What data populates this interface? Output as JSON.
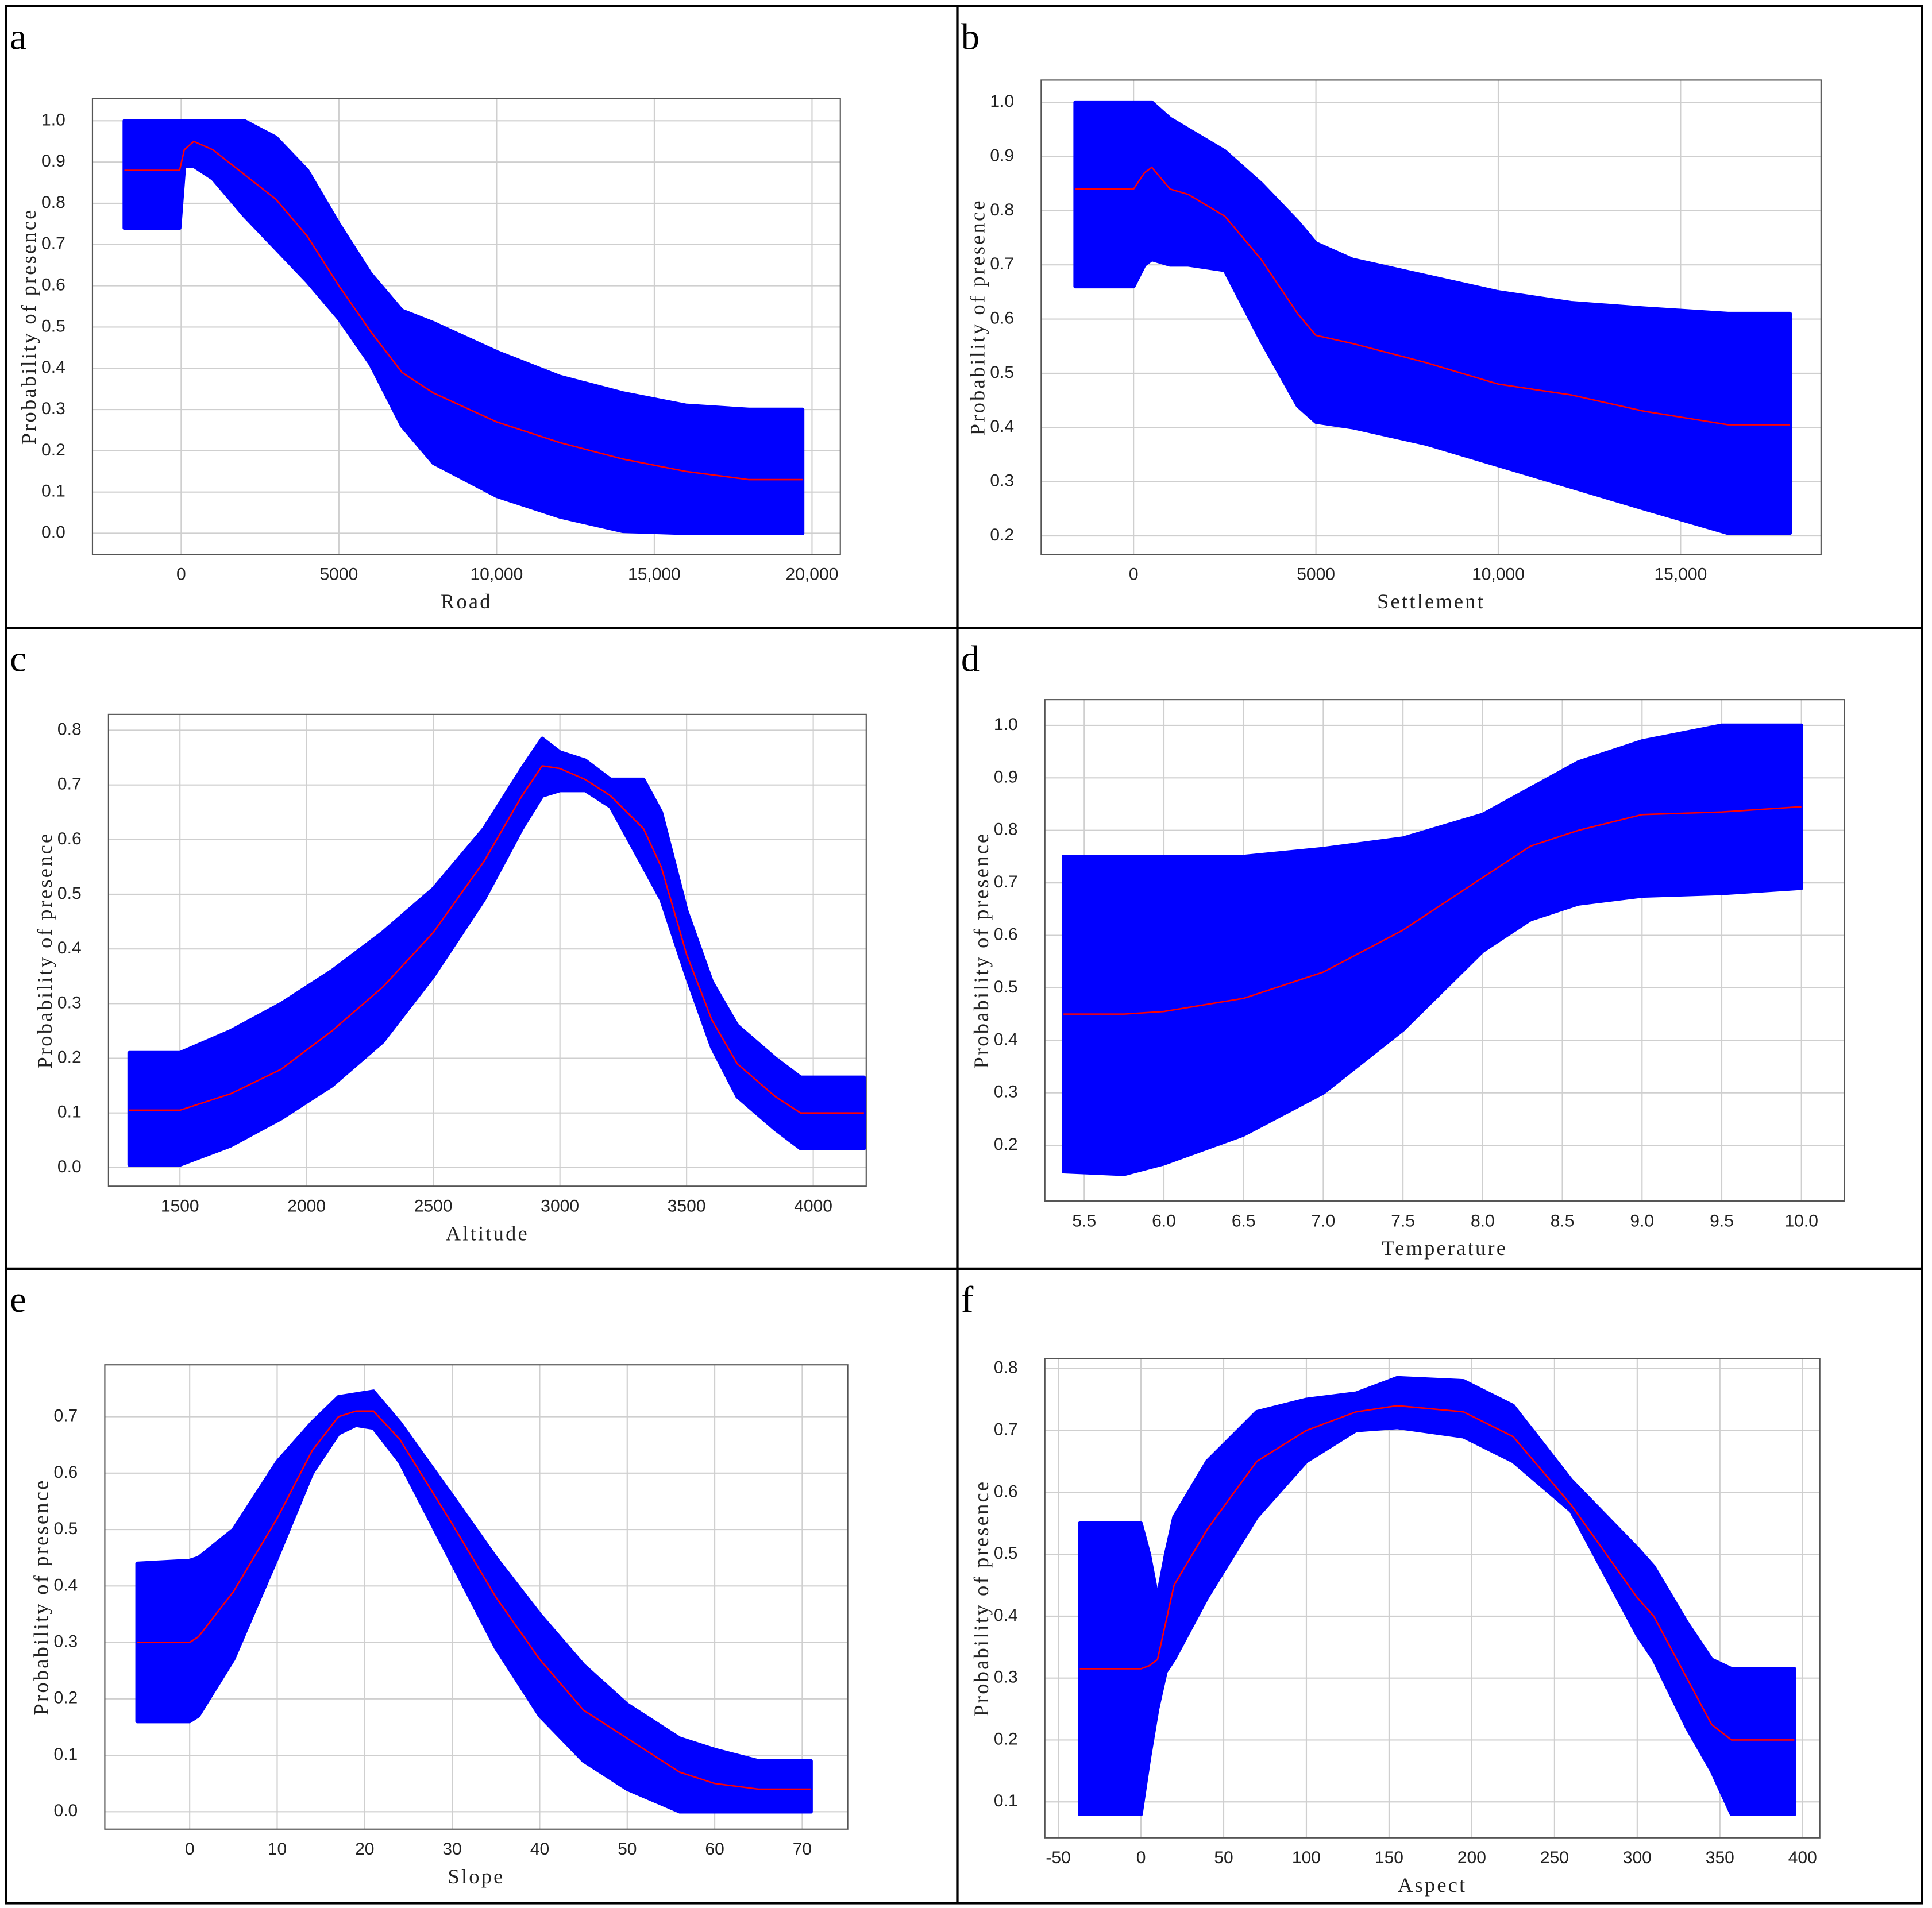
{
  "chart_data": [
    {
      "type": "line",
      "label": "a",
      "x_label": "Road",
      "y_label": "Probability of presence",
      "color": "#ff0000",
      "band_color": "#0000ff",
      "grid": true,
      "xlim": [
        -2812,
        20898
      ],
      "ylim": [
        -0.051,
        1.054
      ],
      "xticks": [
        0,
        5000,
        {
          "value": 10000,
          "label": "10,000"
        },
        {
          "value": 15000,
          "label": "15,000"
        },
        {
          "value": 20000,
          "label": "20,000"
        }
      ],
      "yticks": [
        {
          "value": 0,
          "label": "0.0"
        },
        0.1,
        0.2,
        0.3,
        0.4,
        0.5,
        0.6,
        0.7,
        0.8,
        0.9,
        {
          "value": 1,
          "label": "1.0"
        }
      ],
      "x": [
        -1800,
        -50,
        100,
        400,
        1000,
        2000,
        3000,
        4000,
        5000,
        6000,
        7000,
        8000,
        10000,
        12000,
        14000,
        16000,
        18000,
        19700
      ],
      "values": [
        0.88,
        0.88,
        0.93,
        0.95,
        0.93,
        0.87,
        0.81,
        0.72,
        0.6,
        0.49,
        0.39,
        0.34,
        0.27,
        0.22,
        0.18,
        0.15,
        0.13,
        0.13
      ],
      "lower": [
        0.74,
        0.74,
        0.89,
        0.89,
        0.86,
        0.77,
        0.69,
        0.61,
        0.52,
        0.41,
        0.26,
        0.17,
        0.09,
        0.04,
        0.005,
        0,
        0,
        0
      ],
      "upper": [
        1,
        1,
        1,
        1,
        1,
        1,
        0.96,
        0.88,
        0.75,
        0.63,
        0.54,
        0.51,
        0.44,
        0.38,
        0.34,
        0.31,
        0.3,
        0.3
      ]
    },
    {
      "type": "line",
      "label": "b",
      "x_label": "Settlement",
      "y_label": "Probability of presence",
      "color": "#ff0000",
      "band_color": "#0000ff",
      "grid": true,
      "xlim": [
        -2534,
        18851
      ],
      "ylim": [
        0.166,
        1.041
      ],
      "xticks": [
        0,
        5000,
        {
          "value": 10000,
          "label": "10,000"
        },
        {
          "value": 15000,
          "label": "15,000"
        }
      ],
      "yticks": [
        0.2,
        0.3,
        0.4,
        0.5,
        0.6,
        0.7,
        0.8,
        0.9,
        {
          "value": 1,
          "label": "1.0"
        }
      ],
      "x": [
        -1600,
        0,
        300,
        500,
        1000,
        1500,
        2500,
        3500,
        4500,
        5000,
        6000,
        8000,
        10000,
        12000,
        14000,
        16300,
        18000
      ],
      "values": [
        0.84,
        0.84,
        0.87,
        0.88,
        0.84,
        0.83,
        0.79,
        0.71,
        0.61,
        0.57,
        0.555,
        0.52,
        0.48,
        0.46,
        0.43,
        0.405,
        0.405
      ],
      "lower": [
        0.66,
        0.66,
        0.7,
        0.71,
        0.7,
        0.7,
        0.69,
        0.56,
        0.44,
        0.41,
        0.4,
        0.37,
        0.33,
        0.29,
        0.25,
        0.205,
        0.205
      ],
      "upper": [
        1,
        1,
        1,
        1,
        0.97,
        0.95,
        0.91,
        0.85,
        0.78,
        0.74,
        0.71,
        0.68,
        0.65,
        0.63,
        0.62,
        0.61,
        0.61
      ]
    },
    {
      "type": "line",
      "label": "c",
      "x_label": "Altitude",
      "y_label": "Probability of presence",
      "color": "#ff0000",
      "band_color": "#0000ff",
      "grid": true,
      "xlim": [
        1218,
        4209
      ],
      "ylim": [
        -0.034,
        0.829
      ],
      "xticks": [
        1500,
        2000,
        2500,
        3000,
        3500,
        4000
      ],
      "yticks": [
        {
          "value": 0,
          "label": "0.0"
        },
        0.1,
        0.2,
        0.3,
        0.4,
        0.5,
        0.6,
        0.7,
        0.8
      ],
      "x": [
        1300,
        1500,
        1700,
        1900,
        2100,
        2300,
        2500,
        2700,
        2850,
        2930,
        3000,
        3100,
        3200,
        3330,
        3400,
        3500,
        3600,
        3700,
        3850,
        3950,
        4200
      ],
      "values": [
        0.105,
        0.105,
        0.135,
        0.18,
        0.25,
        0.33,
        0.43,
        0.56,
        0.68,
        0.735,
        0.73,
        0.71,
        0.68,
        0.62,
        0.55,
        0.39,
        0.27,
        0.19,
        0.13,
        0.1,
        0.1
      ],
      "lower": [
        0.005,
        0.005,
        0.04,
        0.09,
        0.15,
        0.23,
        0.35,
        0.49,
        0.62,
        0.68,
        0.69,
        0.69,
        0.66,
        0.55,
        0.49,
        0.35,
        0.22,
        0.13,
        0.07,
        0.035,
        0.035
      ],
      "upper": [
        0.21,
        0.21,
        0.25,
        0.3,
        0.36,
        0.43,
        0.51,
        0.62,
        0.73,
        0.785,
        0.76,
        0.745,
        0.71,
        0.71,
        0.65,
        0.47,
        0.34,
        0.26,
        0.2,
        0.165,
        0.165
      ]
    },
    {
      "type": "line",
      "label": "d",
      "x_label": "Temperature",
      "y_label": "Probability of presence",
      "color": "#ff0000",
      "band_color": "#0000ff",
      "grid": true,
      "xlim": [
        5.253,
        10.27
      ],
      "ylim": [
        0.094,
        1.049
      ],
      "xticks": [
        5.5,
        {
          "value": 6,
          "label": "6.0"
        },
        6.5,
        {
          "value": 7,
          "label": "7.0"
        },
        7.5,
        {
          "value": 8,
          "label": "8.0"
        },
        8.5,
        {
          "value": 9,
          "label": "9.0"
        },
        9.5,
        {
          "value": 10,
          "label": "10.0"
        }
      ],
      "yticks": [
        0.2,
        0.3,
        0.4,
        0.5,
        0.6,
        0.7,
        0.8,
        0.9,
        {
          "value": 1,
          "label": "1.0"
        }
      ],
      "x": [
        5.37,
        5.75,
        6.0,
        6.5,
        7.0,
        7.5,
        8.0,
        8.3,
        8.6,
        9.0,
        9.5,
        10.0
      ],
      "values": [
        0.45,
        0.45,
        0.455,
        0.48,
        0.53,
        0.61,
        0.71,
        0.77,
        0.8,
        0.83,
        0.835,
        0.845
      ],
      "lower": [
        0.15,
        0.145,
        0.165,
        0.22,
        0.3,
        0.42,
        0.57,
        0.63,
        0.66,
        0.675,
        0.68,
        0.69
      ],
      "upper": [
        0.75,
        0.75,
        0.75,
        0.75,
        0.765,
        0.785,
        0.83,
        0.88,
        0.93,
        0.97,
        1,
        1
      ]
    },
    {
      "type": "line",
      "label": "e",
      "x_label": "Slope",
      "y_label": "Probability of presence",
      "color": "#ff0000",
      "band_color": "#0000ff",
      "grid": true,
      "xlim": [
        -9.7,
        75.2
      ],
      "ylim": [
        -0.031,
        0.792
      ],
      "xticks": [
        0,
        10,
        20,
        30,
        40,
        50,
        60,
        70
      ],
      "yticks": [
        {
          "value": 0,
          "label": "0.0"
        },
        0.1,
        0.2,
        0.3,
        0.4,
        0.5,
        0.6,
        0.7
      ],
      "x": [
        -6,
        0,
        1,
        5,
        10,
        14,
        17,
        19,
        21,
        24,
        30,
        35,
        40,
        45,
        50,
        56,
        60,
        65,
        71
      ],
      "values": [
        0.3,
        0.3,
        0.31,
        0.39,
        0.52,
        0.64,
        0.7,
        0.71,
        0.71,
        0.66,
        0.51,
        0.38,
        0.27,
        0.18,
        0.13,
        0.07,
        0.05,
        0.04,
        0.04
      ],
      "lower": [
        0.16,
        0.16,
        0.17,
        0.27,
        0.45,
        0.6,
        0.67,
        0.685,
        0.68,
        0.62,
        0.44,
        0.29,
        0.17,
        0.09,
        0.04,
        0,
        0,
        0,
        0
      ],
      "upper": [
        0.44,
        0.445,
        0.45,
        0.5,
        0.62,
        0.69,
        0.735,
        0.74,
        0.745,
        0.69,
        0.56,
        0.45,
        0.35,
        0.26,
        0.19,
        0.13,
        0.11,
        0.09,
        0.09
      ]
    },
    {
      "type": "line",
      "label": "f",
      "x_label": "Aspect",
      "y_label": "Probability of presence",
      "color": "#ff0000",
      "band_color": "#0000ff",
      "grid": true,
      "xlim": [
        -58.1,
        410.4
      ],
      "ylim": [
        0.042,
        0.816
      ],
      "xticks": [
        -50,
        0,
        50,
        100,
        150,
        200,
        250,
        300,
        350,
        400
      ],
      "yticks": [
        0.1,
        0.2,
        0.3,
        0.4,
        0.5,
        0.6,
        0.7,
        0.8
      ],
      "x": [
        -37,
        0,
        5,
        10,
        15,
        20,
        40,
        70,
        100,
        130,
        155,
        195,
        225,
        260,
        300,
        310,
        330,
        345,
        357,
        395
      ],
      "values": [
        0.315,
        0.315,
        0.32,
        0.33,
        0.39,
        0.45,
        0.54,
        0.65,
        0.7,
        0.73,
        0.74,
        0.73,
        0.69,
        0.58,
        0.43,
        0.4,
        0.3,
        0.225,
        0.2,
        0.2
      ],
      "lower": [
        0.08,
        0.08,
        0.17,
        0.25,
        0.31,
        0.33,
        0.43,
        0.56,
        0.65,
        0.7,
        0.705,
        0.69,
        0.65,
        0.57,
        0.37,
        0.33,
        0.22,
        0.15,
        0.08,
        0.08
      ],
      "upper": [
        0.55,
        0.55,
        0.5,
        0.43,
        0.5,
        0.56,
        0.65,
        0.73,
        0.75,
        0.76,
        0.785,
        0.78,
        0.74,
        0.62,
        0.51,
        0.48,
        0.39,
        0.33,
        0.315,
        0.315
      ]
    }
  ]
}
